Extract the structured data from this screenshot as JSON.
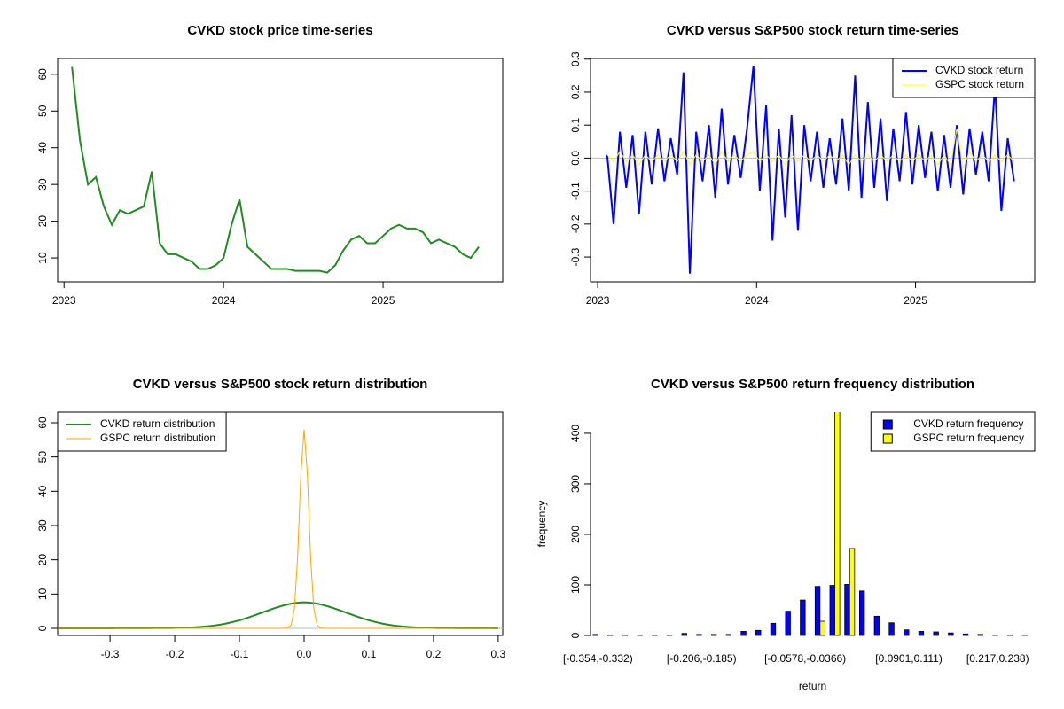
{
  "chart_data": [
    {
      "type": "line",
      "title": "CVKD stock price time-series",
      "color": "#228b22",
      "x": [
        2023.05,
        2023.1,
        2023.15,
        2023.2,
        2023.25,
        2023.3,
        2023.35,
        2023.4,
        2023.45,
        2023.5,
        2023.55,
        2023.6,
        2023.65,
        2023.7,
        2023.75,
        2023.8,
        2023.85,
        2023.9,
        2023.95,
        2024.0,
        2024.05,
        2024.1,
        2024.15,
        2024.2,
        2024.25,
        2024.3,
        2024.35,
        2024.4,
        2024.45,
        2024.5,
        2024.55,
        2024.6,
        2024.65,
        2024.7,
        2024.75,
        2024.8,
        2024.85,
        2024.9,
        2024.95,
        2025.0,
        2025.05,
        2025.1,
        2025.15,
        2025.2,
        2025.25,
        2025.3,
        2025.35,
        2025.4,
        2025.45,
        2025.5,
        2025.55,
        2025.6
      ],
      "values": [
        62,
        42,
        30,
        32,
        24,
        19,
        23,
        22,
        23,
        24,
        33.5,
        14,
        11,
        11,
        10,
        9,
        7,
        7,
        8,
        10,
        19,
        26,
        13,
        11,
        9,
        7,
        7,
        7,
        6.5,
        6.5,
        6.5,
        6.5,
        6,
        8,
        12,
        15,
        16,
        14,
        14,
        16,
        18,
        19,
        18,
        18,
        17,
        14,
        15,
        14,
        13,
        11,
        10,
        13
      ],
      "xlim": [
        2022.96,
        2025.75
      ],
      "xticks": [
        2023,
        2024,
        2025
      ],
      "ylim": [
        3.5,
        64.3
      ],
      "yticks": [
        10,
        20,
        30,
        40,
        50,
        60
      ]
    },
    {
      "type": "line",
      "title": "CVKD versus S&P500 stock return time-series",
      "legend": "topright",
      "x": [
        2023.06,
        2023.1,
        2023.14,
        2023.18,
        2023.22,
        2023.26,
        2023.3,
        2023.34,
        2023.38,
        2023.42,
        2023.46,
        2023.5,
        2023.54,
        2023.58,
        2023.62,
        2023.66,
        2023.7,
        2023.74,
        2023.78,
        2023.82,
        2023.86,
        2023.9,
        2023.94,
        2023.98,
        2024.02,
        2024.06,
        2024.1,
        2024.14,
        2024.18,
        2024.22,
        2024.26,
        2024.3,
        2024.34,
        2024.38,
        2024.42,
        2024.46,
        2024.5,
        2024.54,
        2024.58,
        2024.62,
        2024.66,
        2024.7,
        2024.74,
        2024.78,
        2024.82,
        2024.86,
        2024.9,
        2024.94,
        2024.98,
        2025.02,
        2025.06,
        2025.1,
        2025.14,
        2025.18,
        2025.22,
        2025.26,
        2025.3,
        2025.34,
        2025.38,
        2025.42,
        2025.46,
        2025.5,
        2025.54,
        2025.58,
        2025.62
      ],
      "series": [
        {
          "name": "CVKD stock return",
          "color": "#0000ff",
          "values": [
            0.01,
            -0.2,
            0.08,
            -0.09,
            0.07,
            -0.17,
            0.08,
            -0.08,
            0.09,
            -0.07,
            0.06,
            -0.05,
            0.26,
            -0.35,
            0.08,
            -0.07,
            0.1,
            -0.12,
            0.15,
            -0.08,
            0.07,
            -0.06,
            0.09,
            0.28,
            -0.1,
            0.16,
            -0.25,
            0.09,
            -0.18,
            0.13,
            -0.22,
            0.1,
            -0.07,
            0.08,
            -0.09,
            0.06,
            -0.08,
            0.12,
            -0.1,
            0.25,
            -0.12,
            0.17,
            -0.09,
            0.12,
            -0.13,
            0.09,
            -0.07,
            0.14,
            -0.08,
            0.1,
            -0.06,
            0.08,
            -0.1,
            0.07,
            -0.09,
            0.1,
            -0.11,
            0.09,
            -0.05,
            0.08,
            -0.07,
            0.22,
            -0.16,
            0.06,
            -0.07
          ]
        },
        {
          "name": "GSPC stock return",
          "color": "#ffff00",
          "values": [
            0.01,
            -0.01,
            0.02,
            -0.01,
            0.01,
            -0.02,
            0.01,
            -0.01,
            0.01,
            -0.01,
            0.01,
            -0.01,
            0.02,
            -0.02,
            0.01,
            -0.01,
            0.01,
            -0.02,
            0.02,
            -0.01,
            0.01,
            -0.01,
            0.01,
            0.02,
            -0.01,
            0.01,
            -0.01,
            0.01,
            -0.02,
            0.01,
            -0.01,
            0.01,
            -0.01,
            0.01,
            -0.01,
            0.01,
            -0.01,
            0.01,
            -0.02,
            0.01,
            -0.01,
            0.01,
            -0.01,
            0.01,
            -0.01,
            0.01,
            -0.01,
            0.01,
            -0.01,
            0.01,
            -0.01,
            0.01,
            -0.02,
            0.01,
            -0.02,
            0.09,
            -0.03,
            0.02,
            -0.01,
            0.01,
            -0.01,
            0.01,
            -0.01,
            0.01,
            -0.01
          ]
        }
      ],
      "xlim": [
        2022.955,
        2025.75
      ],
      "xticks": [
        2023,
        2024,
        2025
      ],
      "ylim": [
        -0.375,
        0.302
      ],
      "yticks": [
        -0.3,
        -0.2,
        -0.1,
        {
          "value": 0,
          "label": "0.0"
        },
        0.1,
        0.2,
        0.3
      ]
    },
    {
      "type": "line",
      "title": "CVKD versus S&P500 stock return distribution",
      "legend": "topleft",
      "x": [
        -0.38,
        -0.37,
        -0.36,
        -0.35,
        -0.34,
        -0.33,
        -0.32,
        -0.31,
        -0.3,
        -0.29,
        -0.28,
        -0.27,
        -0.26,
        -0.25,
        -0.24,
        -0.23,
        -0.22,
        -0.21,
        -0.2,
        -0.19,
        -0.18,
        -0.17,
        -0.16,
        -0.15,
        -0.14,
        -0.13,
        -0.12,
        -0.11,
        -0.1,
        -0.09,
        -0.08,
        -0.07,
        -0.06,
        -0.05,
        -0.045,
        -0.04,
        -0.035,
        -0.03,
        -0.025,
        -0.02,
        -0.015,
        -0.01,
        -0.005,
        0,
        0.005,
        0.01,
        0.015,
        0.02,
        0.025,
        0.03,
        0.035,
        0.04,
        0.045,
        0.05,
        0.06,
        0.07,
        0.08,
        0.09,
        0.1,
        0.11,
        0.12,
        0.13,
        0.14,
        0.15,
        0.16,
        0.17,
        0.18,
        0.19,
        0.2,
        0.21,
        0.22,
        0.23,
        0.24,
        0.25,
        0.26,
        0.27,
        0.28,
        0.29,
        0.3
      ],
      "series": [
        {
          "name": "CVKD return distribution",
          "color": "#228b22",
          "values": [
            0.01,
            0.01,
            0.01,
            0.01,
            0.01,
            0.01,
            0.01,
            0.01,
            0.01,
            0.02,
            0.02,
            0.02,
            0.03,
            0.03,
            0.04,
            0.05,
            0.06,
            0.08,
            0.11,
            0.15,
            0.21,
            0.29,
            0.41,
            0.58,
            0.79,
            1.07,
            1.42,
            1.85,
            2.35,
            2.92,
            3.56,
            4.24,
            4.93,
            5.61,
            5.93,
            6.24,
            6.52,
            6.78,
            7.01,
            7.21,
            7.37,
            7.48,
            7.56,
            7.6,
            7.56,
            7.48,
            7.37,
            7.21,
            7.01,
            6.78,
            6.52,
            6.24,
            5.93,
            5.61,
            4.93,
            4.24,
            3.56,
            2.92,
            2.35,
            1.85,
            1.42,
            1.07,
            0.79,
            0.58,
            0.41,
            0.29,
            0.21,
            0.15,
            0.11,
            0.08,
            0.06,
            0.05,
            0.04,
            0.03,
            0.03,
            0.02,
            0.02,
            0.02,
            0.01
          ]
        },
        {
          "name": "GSPC return distribution",
          "color": "#ffa500",
          "values": [
            0,
            0,
            0,
            0,
            0,
            0,
            0,
            0,
            0,
            0,
            0,
            0,
            0,
            0,
            0,
            0,
            0,
            0,
            0,
            0,
            0,
            0,
            0,
            0,
            0,
            0,
            0,
            0,
            0,
            0,
            0,
            0,
            0,
            0,
            0,
            0,
            0,
            0,
            0.1,
            1,
            5.8,
            20.9,
            45,
            58,
            45,
            20.9,
            5.8,
            1,
            0.1,
            0,
            0,
            0,
            0,
            0,
            0,
            0,
            0,
            0,
            0,
            0,
            0,
            0,
            0,
            0,
            0,
            0,
            0,
            0,
            0,
            0,
            0,
            0,
            0,
            0,
            0,
            0,
            0,
            0,
            0
          ]
        }
      ],
      "xlim": [
        -0.381,
        0.307
      ],
      "xticks": [
        -0.3,
        -0.2,
        -0.1,
        {
          "value": 0,
          "label": "0.0"
        },
        0.1,
        0.2,
        0.3
      ],
      "ylim": [
        -2.07,
        63.1
      ],
      "yticks": [
        0,
        10,
        20,
        30,
        40,
        50,
        60
      ]
    },
    {
      "type": "bar",
      "title": "CVKD versus S&P500 return frequency distribution",
      "legend": "topright",
      "xlabel": "return",
      "ylabel": "frequency",
      "categories": [
        "[-0.354,-0.332)",
        null,
        null,
        null,
        null,
        null,
        null,
        "[-0.206,-0.185)",
        null,
        null,
        null,
        null,
        null,
        null,
        "[-0.0578,-0.0366)",
        null,
        null,
        null,
        null,
        null,
        null,
        "[0.0901,0.111)",
        null,
        null,
        null,
        null,
        null,
        "[0.217,0.238)",
        null,
        null
      ],
      "series": [
        {
          "name": "CVKD return frequency",
          "color": "#0000ff",
          "values": [
            2,
            1,
            1,
            1,
            1,
            1,
            4,
            2,
            2,
            2,
            8,
            10,
            24,
            48,
            70,
            97,
            99,
            101,
            88,
            38,
            25,
            11,
            8,
            7,
            5,
            3,
            2,
            1,
            1,
            1
          ]
        },
        {
          "name": "GSPC return frequency",
          "color": "#ffff00",
          "values": [
            0,
            0,
            0,
            0,
            0,
            0,
            0,
            0,
            0,
            0,
            0,
            0,
            0,
            0,
            0,
            28,
            464,
            172,
            0,
            0,
            0,
            0,
            0,
            0,
            0,
            0,
            0,
            0,
            0,
            0
          ]
        }
      ],
      "ylim": [
        0,
        442
      ],
      "yticks": [
        0,
        100,
        200,
        300,
        400
      ]
    }
  ]
}
